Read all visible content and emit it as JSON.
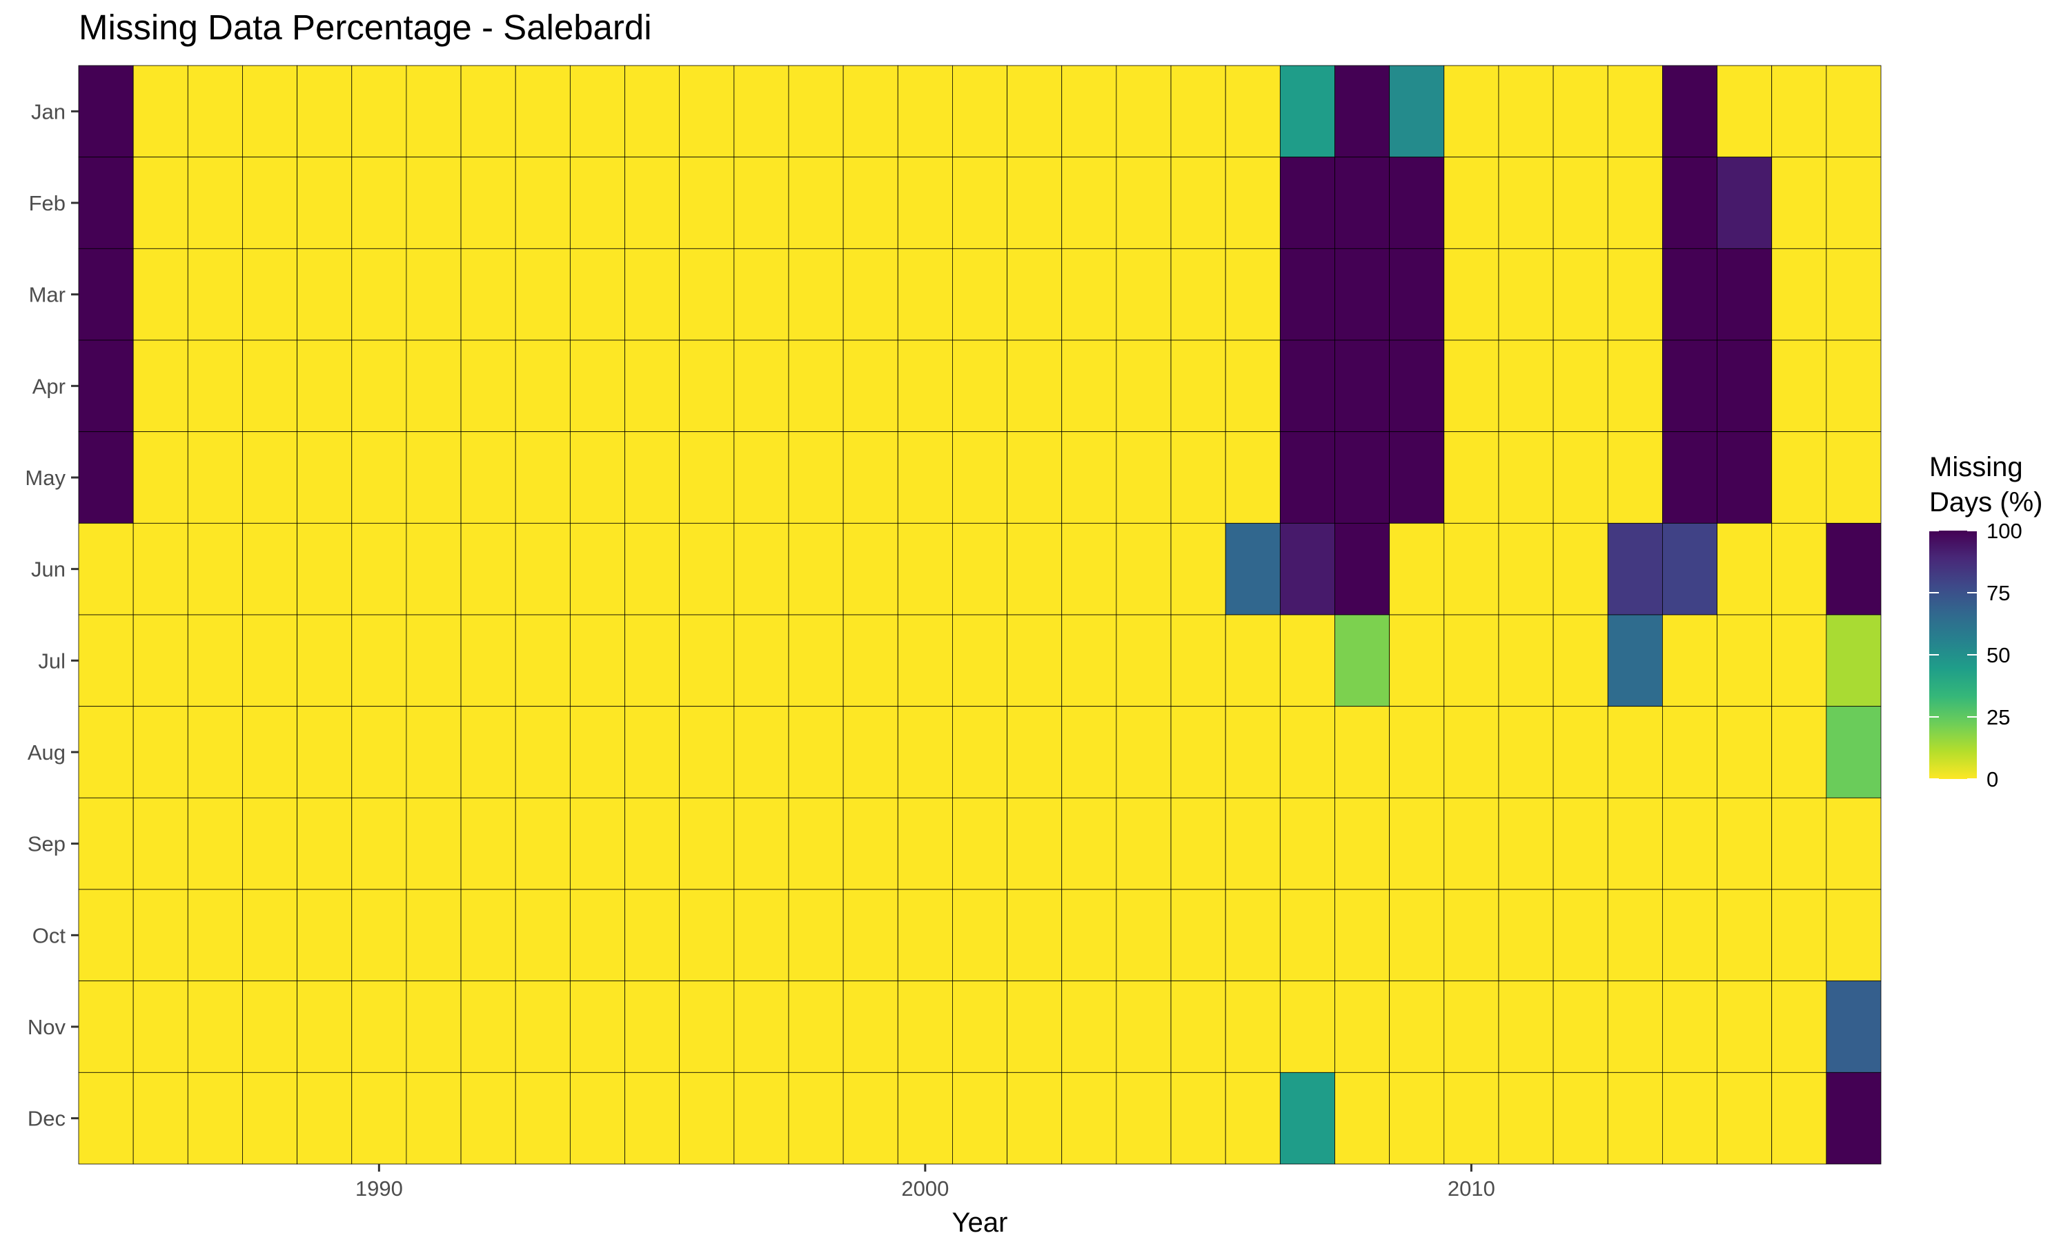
{
  "chart_data": {
    "type": "heatmap",
    "title": "Missing Data Percentage - Salebardi",
    "xlabel": "Year",
    "ylabel": "",
    "x_range": [
      1985,
      2018
    ],
    "x_ticks": [
      1990,
      2000,
      2010
    ],
    "years": [
      1985,
      1986,
      1987,
      1988,
      1989,
      1990,
      1991,
      1992,
      1993,
      1994,
      1995,
      1996,
      1997,
      1998,
      1999,
      2000,
      2001,
      2002,
      2003,
      2004,
      2005,
      2006,
      2007,
      2008,
      2009,
      2010,
      2011,
      2012,
      2013,
      2014,
      2015,
      2016,
      2017
    ],
    "months": [
      "Jan",
      "Feb",
      "Mar",
      "Apr",
      "May",
      "Jun",
      "Jul",
      "Aug",
      "Sep",
      "Oct",
      "Nov",
      "Dec"
    ],
    "values": {
      "Jan": [
        100,
        0,
        0,
        0,
        0,
        0,
        0,
        0,
        0,
        0,
        0,
        0,
        0,
        0,
        0,
        0,
        0,
        0,
        0,
        0,
        0,
        0,
        45,
        100,
        52,
        0,
        0,
        0,
        0,
        100,
        0,
        0,
        0
      ],
      "Feb": [
        100,
        0,
        0,
        0,
        0,
        0,
        0,
        0,
        0,
        0,
        0,
        0,
        0,
        0,
        0,
        0,
        0,
        0,
        0,
        0,
        0,
        0,
        100,
        100,
        100,
        0,
        0,
        0,
        0,
        100,
        93,
        0,
        0
      ],
      "Mar": [
        100,
        0,
        0,
        0,
        0,
        0,
        0,
        0,
        0,
        0,
        0,
        0,
        0,
        0,
        0,
        0,
        0,
        0,
        0,
        0,
        0,
        0,
        100,
        100,
        100,
        0,
        0,
        0,
        0,
        100,
        100,
        0,
        0
      ],
      "Apr": [
        100,
        0,
        0,
        0,
        0,
        0,
        0,
        0,
        0,
        0,
        0,
        0,
        0,
        0,
        0,
        0,
        0,
        0,
        0,
        0,
        0,
        0,
        100,
        100,
        100,
        0,
        0,
        0,
        0,
        100,
        100,
        0,
        0
      ],
      "May": [
        100,
        0,
        0,
        0,
        0,
        0,
        0,
        0,
        0,
        0,
        0,
        0,
        0,
        0,
        0,
        0,
        0,
        0,
        0,
        0,
        0,
        0,
        100,
        100,
        100,
        0,
        0,
        0,
        0,
        100,
        100,
        0,
        0
      ],
      "Jun": [
        0,
        0,
        0,
        0,
        0,
        0,
        0,
        0,
        0,
        0,
        0,
        0,
        0,
        0,
        0,
        0,
        0,
        0,
        0,
        0,
        0,
        67,
        93,
        100,
        0,
        0,
        0,
        0,
        83,
        80,
        0,
        0,
        100
      ],
      "Jul": [
        0,
        0,
        0,
        0,
        0,
        0,
        0,
        0,
        0,
        0,
        0,
        0,
        0,
        0,
        0,
        0,
        0,
        0,
        0,
        0,
        0,
        0,
        0,
        20,
        0,
        0,
        0,
        0,
        65,
        0,
        0,
        0,
        13
      ],
      "Aug": [
        0,
        0,
        0,
        0,
        0,
        0,
        0,
        0,
        0,
        0,
        0,
        0,
        0,
        0,
        0,
        0,
        0,
        0,
        0,
        0,
        0,
        0,
        0,
        0,
        0,
        0,
        0,
        0,
        0,
        0,
        0,
        0,
        23
      ],
      "Sep": [
        0,
        0,
        0,
        0,
        0,
        0,
        0,
        0,
        0,
        0,
        0,
        0,
        0,
        0,
        0,
        0,
        0,
        0,
        0,
        0,
        0,
        0,
        0,
        0,
        0,
        0,
        0,
        0,
        0,
        0,
        0,
        0,
        0
      ],
      "Oct": [
        0,
        0,
        0,
        0,
        0,
        0,
        0,
        0,
        0,
        0,
        0,
        0,
        0,
        0,
        0,
        0,
        0,
        0,
        0,
        0,
        0,
        0,
        0,
        0,
        0,
        0,
        0,
        0,
        0,
        0,
        0,
        0,
        0
      ],
      "Nov": [
        0,
        0,
        0,
        0,
        0,
        0,
        0,
        0,
        0,
        0,
        0,
        0,
        0,
        0,
        0,
        0,
        0,
        0,
        0,
        0,
        0,
        0,
        0,
        0,
        0,
        0,
        0,
        0,
        0,
        0,
        0,
        0,
        70
      ],
      "Dec": [
        0,
        0,
        0,
        0,
        0,
        0,
        0,
        0,
        0,
        0,
        0,
        0,
        0,
        0,
        0,
        0,
        0,
        0,
        0,
        0,
        0,
        0,
        45,
        0,
        0,
        0,
        0,
        0,
        0,
        0,
        0,
        0,
        100
      ]
    },
    "colorbar": {
      "title_lines": [
        "Missing",
        "Days (%)"
      ],
      "ticks": [
        0,
        25,
        50,
        75,
        100
      ],
      "range": [
        0,
        100
      ],
      "palette": "viridis-reversed",
      "stops": [
        "#FDE725",
        "#B5DE2B",
        "#6ECE58",
        "#35B779",
        "#1F9E89",
        "#26828E",
        "#31688E",
        "#3E4989",
        "#482878",
        "#440154"
      ]
    },
    "grid": true,
    "legend_position": "right"
  }
}
